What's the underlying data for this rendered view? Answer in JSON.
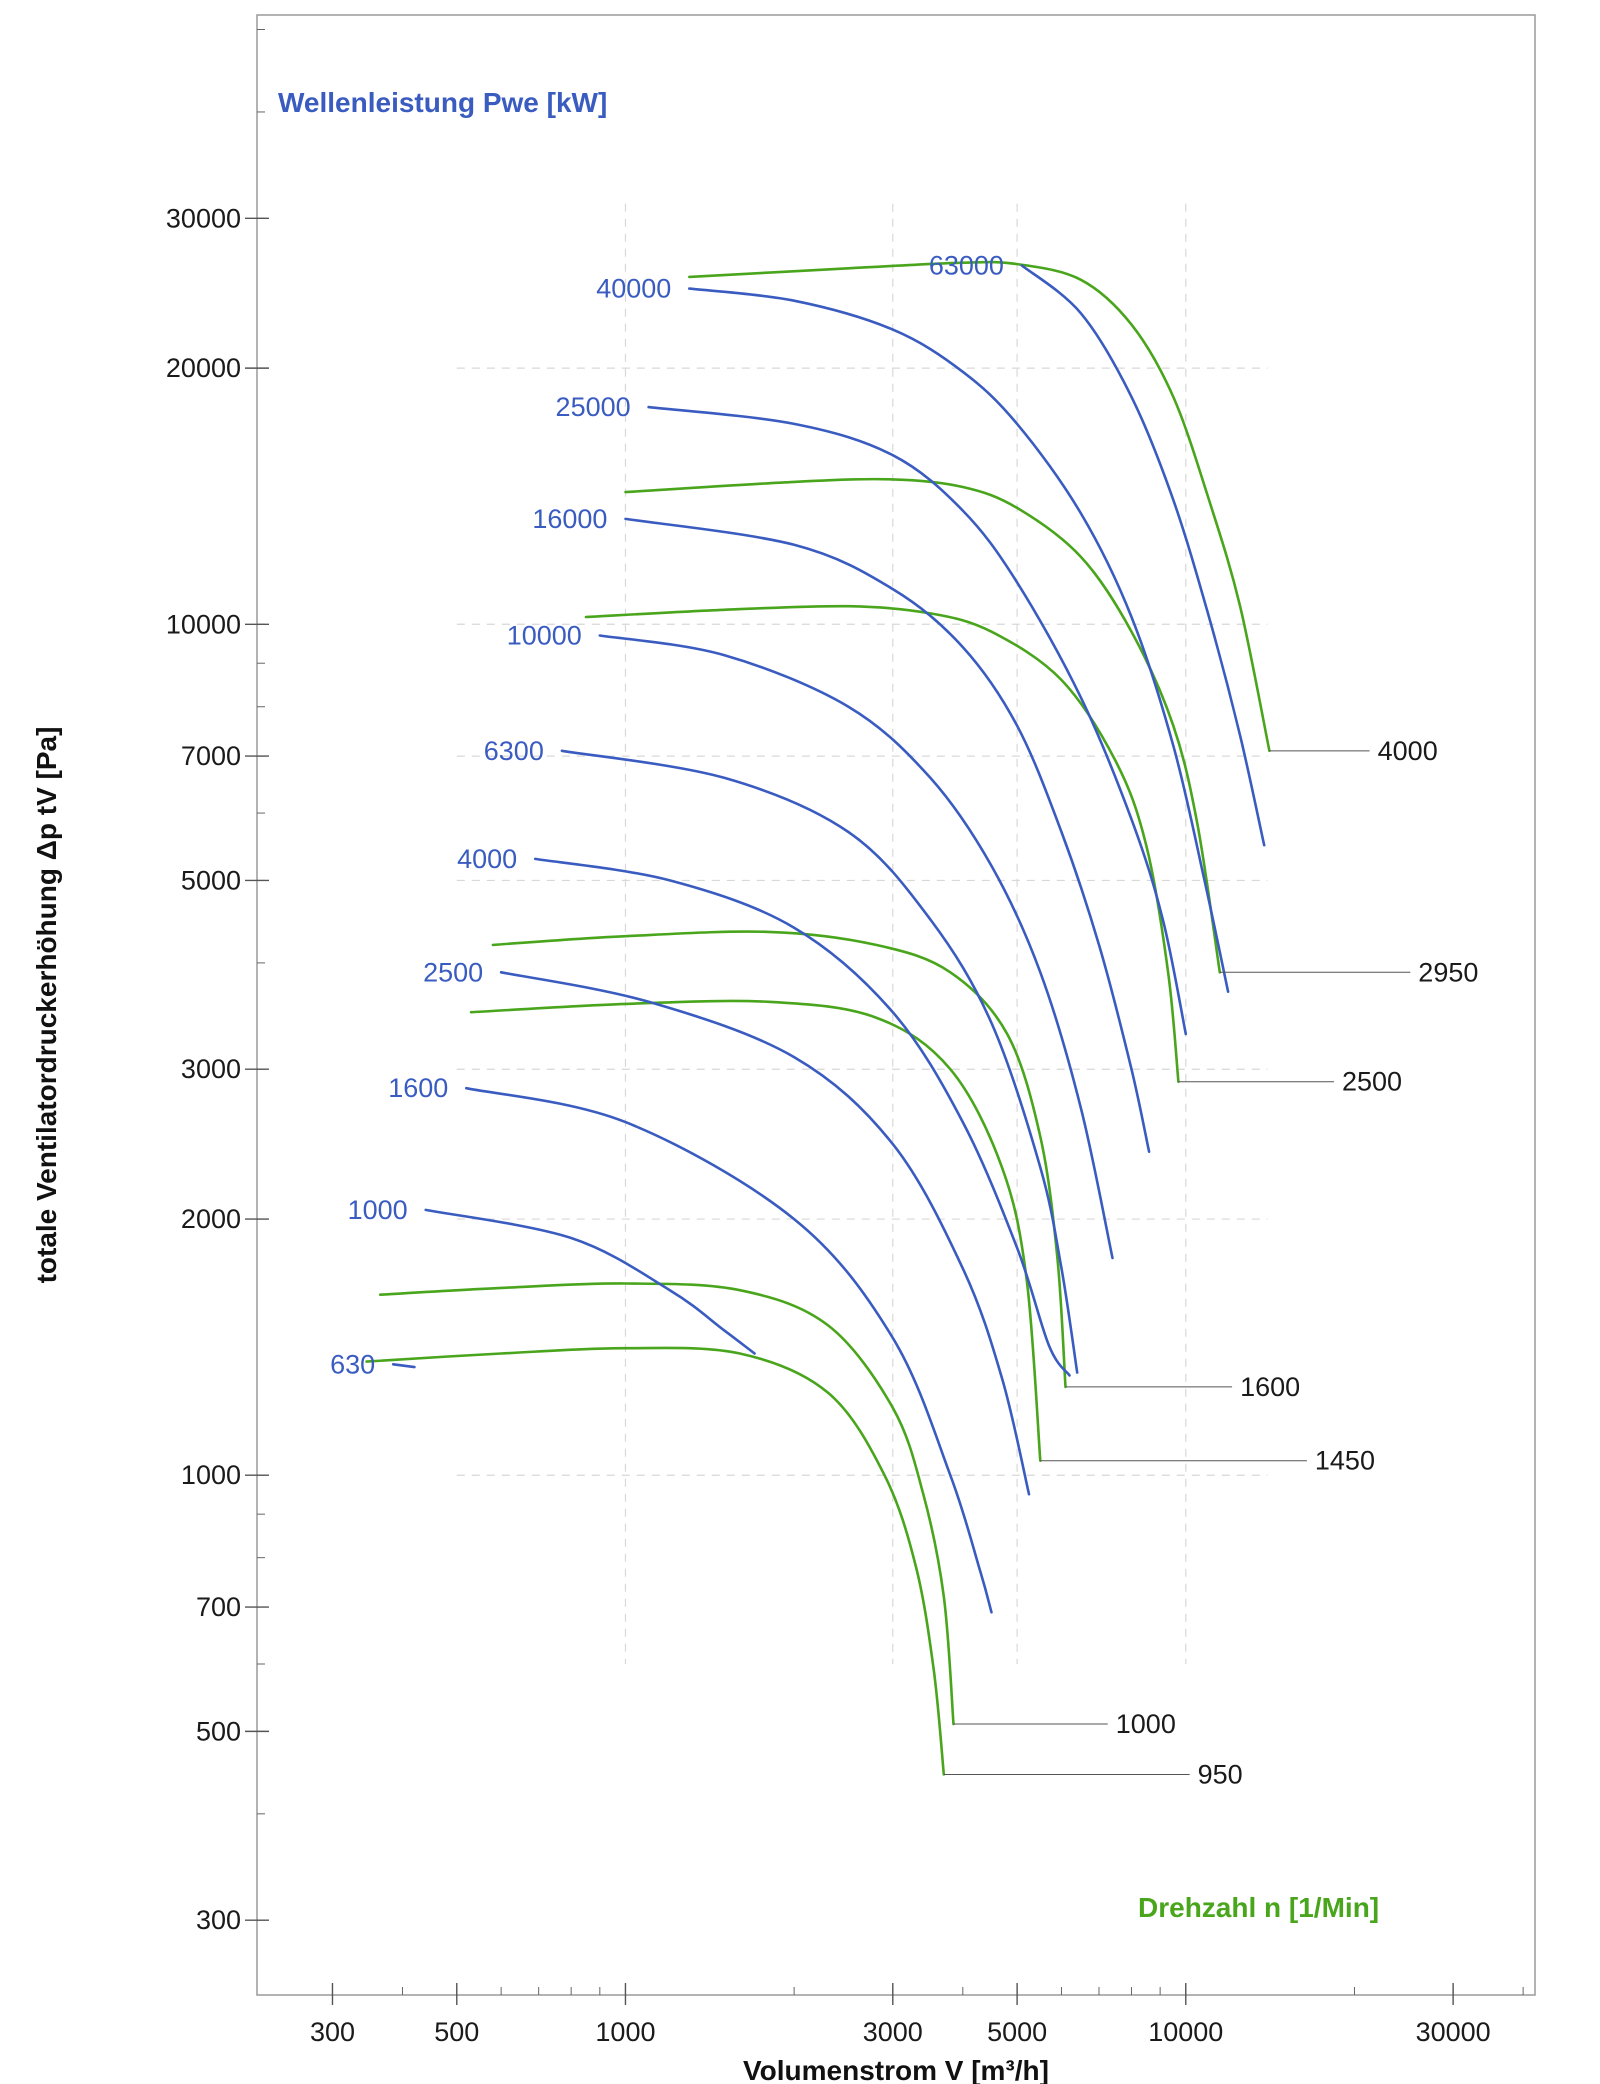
{
  "chart_data": {
    "type": "line",
    "scale": "log-log",
    "xlabel": "Volumenstrom  V [m³/h]",
    "ylabel": "totale Ventilatordruckerhöhung  Δp tV [Pa]",
    "xlim": [
      220,
      42000
    ],
    "ylim": [
      245,
      52000
    ],
    "x_ticks": [
      300,
      500,
      1000,
      3000,
      5000,
      10000,
      30000
    ],
    "y_ticks": [
      300,
      500,
      700,
      1000,
      2000,
      3000,
      5000,
      7000,
      10000,
      20000,
      30000
    ],
    "grid": "partial-dashed",
    "colors": {
      "power": "#3a5cc0",
      "speed": "#49a51c",
      "axis": "#888888"
    },
    "power_legend": "Wellenleistung  Pwe [kW]",
    "speed_legend": "Drehzahl  n [1/Min]",
    "power_series": [
      {
        "name": "63000",
        "points": [
          [
            5100,
            26400
          ],
          [
            6500,
            23200
          ],
          [
            8000,
            18500
          ],
          [
            9500,
            14000
          ],
          [
            11000,
            10200
          ],
          [
            12500,
            7400
          ],
          [
            13800,
            5500
          ]
        ]
      },
      {
        "name": "40000",
        "points": [
          [
            1300,
            24800
          ],
          [
            2000,
            24000
          ],
          [
            3000,
            22200
          ],
          [
            4000,
            19800
          ],
          [
            5000,
            17200
          ],
          [
            6500,
            13500
          ],
          [
            8000,
            10200
          ],
          [
            9500,
            7200
          ],
          [
            10800,
            5000
          ],
          [
            11900,
            3700
          ]
        ]
      },
      {
        "name": "25000",
        "points": [
          [
            1100,
            18000
          ],
          [
            2000,
            17200
          ],
          [
            3000,
            15800
          ],
          [
            4000,
            13600
          ],
          [
            5000,
            11200
          ],
          [
            6500,
            8200
          ],
          [
            8000,
            5900
          ],
          [
            9100,
            4500
          ],
          [
            10000,
            3300
          ]
        ]
      },
      {
        "name": "16000",
        "points": [
          [
            1000,
            13300
          ],
          [
            2000,
            12400
          ],
          [
            3000,
            11000
          ],
          [
            4000,
            9400
          ],
          [
            5000,
            7600
          ],
          [
            6000,
            5700
          ],
          [
            7000,
            4200
          ],
          [
            8000,
            3000
          ],
          [
            8600,
            2400
          ]
        ]
      },
      {
        "name": "10000",
        "points": [
          [
            900,
            9700
          ],
          [
            1500,
            9200
          ],
          [
            2500,
            8000
          ],
          [
            3500,
            6600
          ],
          [
            4500,
            5200
          ],
          [
            5500,
            3900
          ],
          [
            6500,
            2700
          ],
          [
            7400,
            1800
          ]
        ]
      },
      {
        "name": "6300",
        "points": [
          [
            770,
            7100
          ],
          [
            1500,
            6600
          ],
          [
            2500,
            5700
          ],
          [
            3500,
            4500
          ],
          [
            4500,
            3400
          ],
          [
            5500,
            2300
          ],
          [
            6000,
            1750
          ],
          [
            6400,
            1320
          ]
        ]
      },
      {
        "name": "4000",
        "points": [
          [
            690,
            5300
          ],
          [
            1200,
            5000
          ],
          [
            2000,
            4400
          ],
          [
            3000,
            3500
          ],
          [
            4000,
            2600
          ],
          [
            5000,
            1850
          ],
          [
            5700,
            1420
          ],
          [
            6200,
            1310
          ]
        ]
      },
      {
        "name": "2500",
        "points": [
          [
            600,
            3900
          ],
          [
            1100,
            3600
          ],
          [
            2000,
            3100
          ],
          [
            3000,
            2450
          ],
          [
            4000,
            1750
          ],
          [
            4700,
            1300
          ],
          [
            5250,
            950
          ]
        ]
      },
      {
        "name": "1600",
        "points": [
          [
            520,
            2850
          ],
          [
            1000,
            2600
          ],
          [
            2000,
            2000
          ],
          [
            3000,
            1450
          ],
          [
            3800,
            1000
          ],
          [
            4300,
            770
          ],
          [
            4500,
            690
          ]
        ]
      },
      {
        "name": "1000",
        "points": [
          [
            440,
            2050
          ],
          [
            800,
            1900
          ],
          [
            1200,
            1650
          ],
          [
            1500,
            1480
          ],
          [
            1700,
            1390
          ]
        ]
      },
      {
        "name": "630",
        "points": [
          [
            385,
            1350
          ],
          [
            420,
            1340
          ]
        ]
      }
    ],
    "speed_series": [
      {
        "name": "4000",
        "points": [
          [
            1300,
            25600
          ],
          [
            2500,
            26200
          ],
          [
            4000,
            26600
          ],
          [
            5000,
            26500
          ],
          [
            6500,
            25400
          ],
          [
            8000,
            22500
          ],
          [
            9500,
            18500
          ],
          [
            11000,
            14000
          ],
          [
            12500,
            10500
          ],
          [
            14100,
            7100
          ]
        ]
      },
      {
        "name": "2950",
        "points": [
          [
            1000,
            14300
          ],
          [
            2000,
            14700
          ],
          [
            3000,
            14800
          ],
          [
            4000,
            14500
          ],
          [
            5000,
            13700
          ],
          [
            6500,
            12000
          ],
          [
            8000,
            9800
          ],
          [
            9500,
            7600
          ],
          [
            10500,
            5800
          ],
          [
            11500,
            3900
          ]
        ]
      },
      {
        "name": "2500",
        "points": [
          [
            850,
            10200
          ],
          [
            1500,
            10400
          ],
          [
            2500,
            10500
          ],
          [
            3500,
            10300
          ],
          [
            4500,
            9800
          ],
          [
            6000,
            8600
          ],
          [
            7500,
            6900
          ],
          [
            8500,
            5500
          ],
          [
            9300,
            3900
          ],
          [
            9700,
            2900
          ]
        ]
      },
      {
        "name": "1600",
        "points": [
          [
            580,
            4200
          ],
          [
            1000,
            4300
          ],
          [
            1800,
            4350
          ],
          [
            2800,
            4200
          ],
          [
            3800,
            3900
          ],
          [
            4800,
            3300
          ],
          [
            5500,
            2500
          ],
          [
            5900,
            1800
          ],
          [
            6100,
            1270
          ]
        ]
      },
      {
        "name": "1450",
        "points": [
          [
            530,
            3500
          ],
          [
            1000,
            3580
          ],
          [
            1800,
            3600
          ],
          [
            2800,
            3450
          ],
          [
            3800,
            3000
          ],
          [
            4700,
            2300
          ],
          [
            5200,
            1700
          ],
          [
            5500,
            1040
          ]
        ]
      },
      {
        "name": "1000",
        "points": [
          [
            365,
            1630
          ],
          [
            600,
            1660
          ],
          [
            1000,
            1680
          ],
          [
            1600,
            1650
          ],
          [
            2300,
            1500
          ],
          [
            3000,
            1200
          ],
          [
            3400,
            950
          ],
          [
            3700,
            720
          ],
          [
            3850,
            510
          ]
        ]
      },
      {
        "name": "950",
        "points": [
          [
            345,
            1360
          ],
          [
            600,
            1390
          ],
          [
            1000,
            1410
          ],
          [
            1600,
            1390
          ],
          [
            2300,
            1250
          ],
          [
            2900,
            1000
          ],
          [
            3300,
            780
          ],
          [
            3550,
            590
          ],
          [
            3700,
            445
          ]
        ]
      }
    ],
    "speed_end_labels": [
      {
        "name": "4000",
        "x": 22000,
        "y": 7100
      },
      {
        "name": "2950",
        "x": 26000,
        "y": 3900
      },
      {
        "name": "2500",
        "x": 19000,
        "y": 2900
      },
      {
        "name": "1600",
        "x": 12500,
        "y": 1270
      },
      {
        "name": "1450",
        "x": 17000,
        "y": 1040
      },
      {
        "name": "1000",
        "x": 7500,
        "y": 510
      },
      {
        "name": "950",
        "x": 10500,
        "y": 445
      }
    ]
  }
}
